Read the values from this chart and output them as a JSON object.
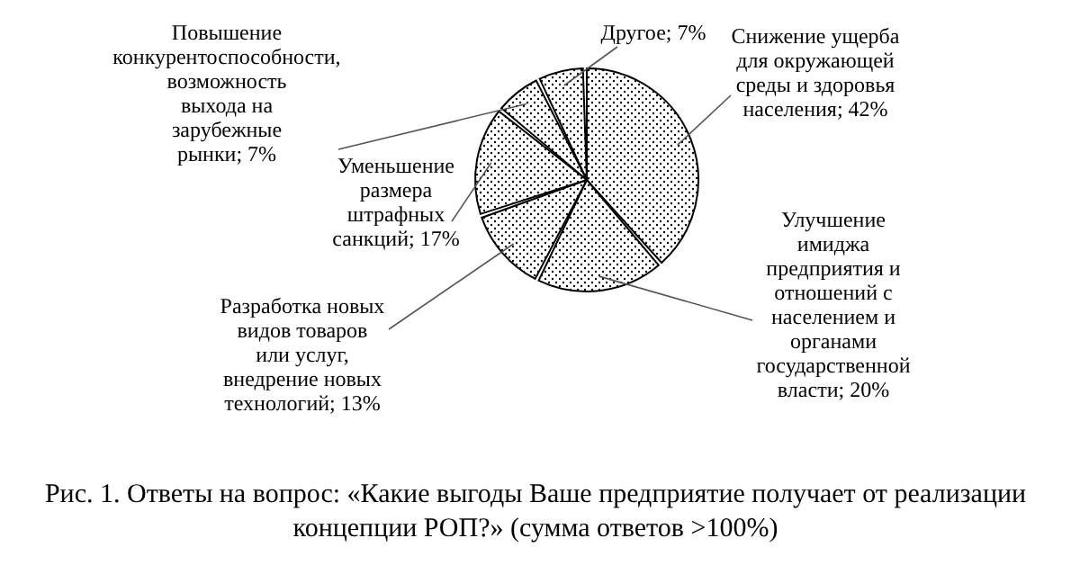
{
  "chart_data": {
    "type": "pie",
    "title": "Рис. 1. Ответы на вопрос: «Какие выгоды Ваше предприятие получает от реализации концепции РОП?» (сумма ответов >100%)",
    "categories": [
      "Снижение ущерба для окружающей среды и здоровья населения; 42%",
      "Улучшение имиджа предприятия и отношений с населением и органами государственной власти; 20%",
      "Разработка новых видов товаров или услуг, внедрение новых технологий; 13%",
      "Уменьшение размера штрафных санкций; 17%",
      "Повышение конкурентоспособности, возможность выхода на зарубежные рынки; 7%",
      "Другое; 7%"
    ],
    "values": [
      42,
      20,
      13,
      17,
      7,
      7
    ],
    "colors": [
      "#000000",
      "#000000",
      "#000000",
      "#000000",
      "#000000",
      "#000000"
    ]
  }
}
